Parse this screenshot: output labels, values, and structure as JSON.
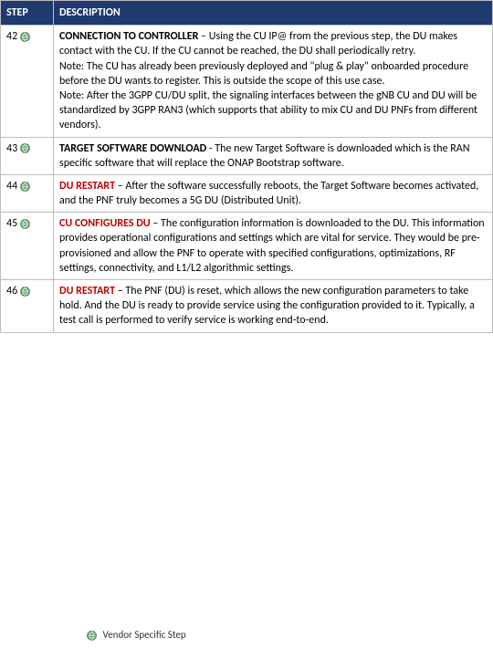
{
  "table": {
    "header_bg": "#1e3a6e",
    "header_fg": "#ffffff",
    "border_color": "#bdbdbd",
    "columns": {
      "step": "STEP",
      "description": "DESCRIPTION"
    },
    "title_red_color": "#c00000",
    "rows": [
      {
        "step": "42",
        "title": "CONNECTION TO CONTROLLER",
        "title_style": "black-with-red-label",
        "body": " – Using the CU IP@ from the previous step, the DU makes contact with the CU. If the CU cannot be reached, the DU shall periodically retry.\nNote: The CU has already been previously deployed and \"plug & play\" onboarded procedure before the DU wants to register. This is outside the scope of this use case.\nNote: After the 3GPP CU/DU split, the signaling interfaces between the gNB CU and DU will be standardized by 3GPP RAN3 (which supports that ability to mix CU and DU PNFs from different vendors)."
      },
      {
        "step": "43",
        "title": "TARGET SOFTWARE DOWNLOAD",
        "title_style": "black",
        "body": " - The new Target Software is downloaded which is the RAN specific software that will replace the ONAP Bootstrap software."
      },
      {
        "step": "44",
        "title": "DU RESTART",
        "title_style": "red",
        "body": " – After the software successfully reboots, the Target Software becomes activated, and the PNF truly becomes a 5G DU (Distributed Unit)."
      },
      {
        "step": "45",
        "title": "CU CONFIGURES DU",
        "title_style": "red",
        "body": " – The configuration information is downloaded to the DU. This information provides operational configurations and settings which are vital for service. They would be pre-provisioned and allow the PNF to operate with specified configurations, optimizations, RF settings, connectivity, and L1/L2 algorithmic settings."
      },
      {
        "step": "46",
        "title": "DU RESTART",
        "title_style": "red",
        "body": " – The PNF (DU) is reset, which allows the new configuration parameters to take hold. And the DU is ready to provide service using the configuration provided to it. Typically, a test call is performed to verify service is working end-to-end."
      }
    ]
  },
  "legend": {
    "label": "Vendor Specific Step"
  },
  "icons": {
    "globe": {
      "size": 11,
      "ring_color": "#2f6a3a",
      "fill_color": "#7db88a",
      "inner_color": "#c8e2cf"
    }
  }
}
